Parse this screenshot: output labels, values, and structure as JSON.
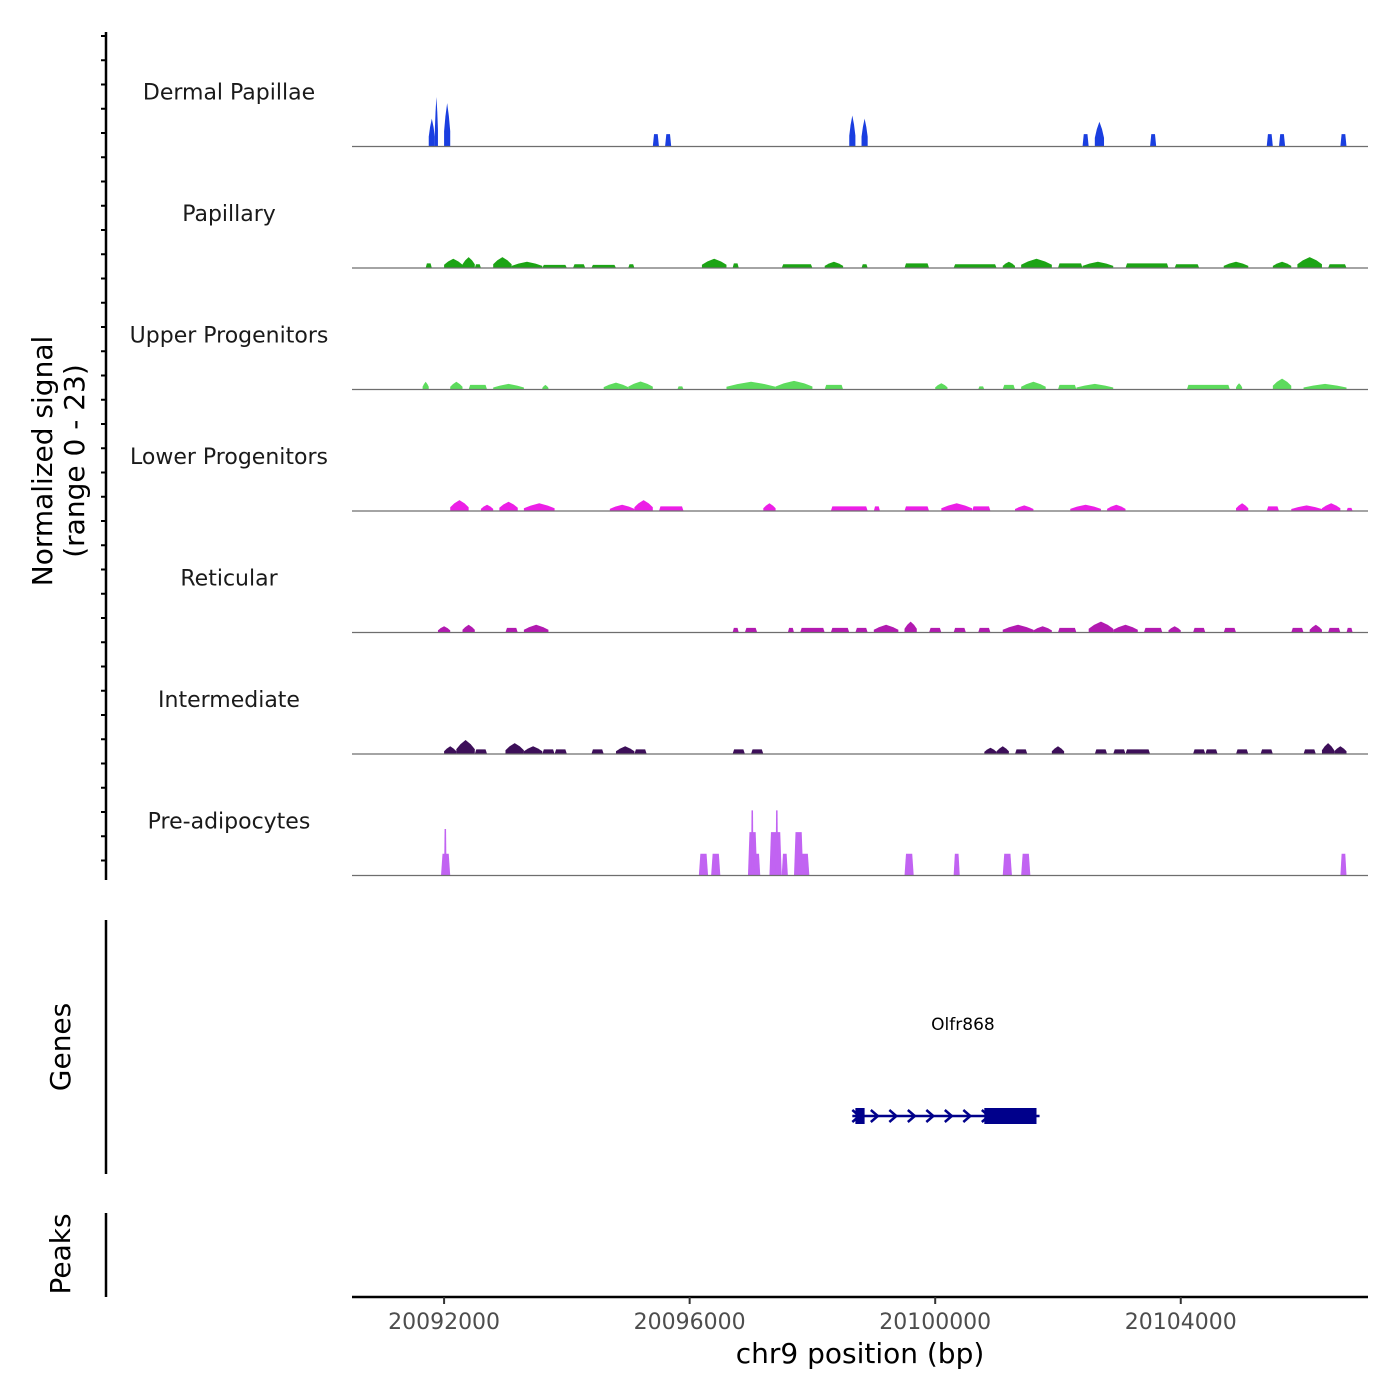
{
  "chart_data": {
    "type": "area",
    "title": "",
    "chromosome": "chr9",
    "xlabel": "chr9 position (bp)",
    "xlim": [
      20090500,
      20107050
    ],
    "x_ticks": [
      20092000,
      20096000,
      20100000,
      20104000
    ],
    "x_tick_labels": [
      "20092000",
      "20096000",
      "20100000",
      "20104000"
    ],
    "ylabel_line1": "Normalized signal",
    "ylabel_line2": "(range 0 - 23)",
    "ylim": [
      0,
      23
    ],
    "bin_size_bp": 100,
    "series": [
      {
        "name": "Dermal Papillae",
        "color": "#1a3ee0",
        "peaks": [
          [
            20091750,
            20091850,
            9,
            1
          ],
          [
            20091850,
            20091900,
            16,
            1
          ],
          [
            20092000,
            20092100,
            14,
            1
          ],
          [
            20095400,
            20095500,
            4,
            0
          ],
          [
            20095600,
            20095700,
            4,
            0
          ],
          [
            20098600,
            20098700,
            10,
            1
          ],
          [
            20098800,
            20098900,
            9,
            1
          ],
          [
            20102400,
            20102500,
            4,
            0
          ],
          [
            20102600,
            20102750,
            8,
            1
          ],
          [
            20103500,
            20103600,
            4,
            0
          ],
          [
            20105400,
            20105500,
            4,
            0
          ],
          [
            20105600,
            20105700,
            4,
            0
          ],
          [
            20106600,
            20106700,
            4,
            0
          ]
        ]
      },
      {
        "name": "Papillary",
        "color": "#1ca415",
        "peaks": [
          [
            20091700,
            20091800,
            1.5,
            0
          ],
          [
            20092000,
            20092300,
            3,
            1
          ],
          [
            20092300,
            20092500,
            3.5,
            1
          ],
          [
            20092500,
            20092600,
            1.2,
            0
          ],
          [
            20092800,
            20093100,
            3.5,
            1
          ],
          [
            20093100,
            20093600,
            2,
            1
          ],
          [
            20093600,
            20094000,
            1,
            0
          ],
          [
            20094100,
            20094300,
            1.2,
            0
          ],
          [
            20094400,
            20094800,
            1,
            0
          ],
          [
            20095000,
            20095100,
            1.2,
            0
          ],
          [
            20096200,
            20096600,
            3,
            1
          ],
          [
            20096700,
            20096800,
            1.5,
            0
          ],
          [
            20097500,
            20098000,
            1.2,
            0
          ],
          [
            20098200,
            20098500,
            2,
            1
          ],
          [
            20098800,
            20098900,
            1.2,
            0
          ],
          [
            20099500,
            20099900,
            1.5,
            0
          ],
          [
            20100300,
            20101000,
            1.2,
            0
          ],
          [
            20101100,
            20101300,
            2,
            1
          ],
          [
            20101400,
            20101900,
            3,
            1
          ],
          [
            20102000,
            20102400,
            1.5,
            0
          ],
          [
            20102400,
            20102900,
            2,
            1
          ],
          [
            20103100,
            20103800,
            1.5,
            0
          ],
          [
            20103900,
            20104300,
            1.2,
            0
          ],
          [
            20104700,
            20105100,
            2,
            1
          ],
          [
            20105500,
            20105800,
            2,
            1
          ],
          [
            20105900,
            20106300,
            3.5,
            1
          ],
          [
            20106400,
            20106700,
            1.2,
            0
          ]
        ]
      },
      {
        "name": "Upper Progenitors",
        "color": "#5ddb5d",
        "peaks": [
          [
            20091650,
            20091750,
            2.5,
            1
          ],
          [
            20092100,
            20092300,
            2.5,
            1
          ],
          [
            20092400,
            20092700,
            1.5,
            0
          ],
          [
            20092800,
            20093300,
            1.8,
            1
          ],
          [
            20093600,
            20093700,
            1.5,
            1
          ],
          [
            20094600,
            20095000,
            2.2,
            1
          ],
          [
            20095000,
            20095400,
            2.6,
            1
          ],
          [
            20095800,
            20095900,
            1,
            0
          ],
          [
            20096600,
            20097400,
            2.5,
            1
          ],
          [
            20097400,
            20098000,
            2.8,
            1
          ],
          [
            20098200,
            20098500,
            1.5,
            0
          ],
          [
            20100000,
            20100200,
            2,
            1
          ],
          [
            20100700,
            20100800,
            1,
            0
          ],
          [
            20101100,
            20101300,
            1.5,
            0
          ],
          [
            20101400,
            20101800,
            2.5,
            1
          ],
          [
            20102000,
            20102300,
            1.5,
            0
          ],
          [
            20102300,
            20102900,
            1.8,
            1
          ],
          [
            20104100,
            20104800,
            1.5,
            0
          ],
          [
            20104900,
            20105000,
            2,
            1
          ],
          [
            20105500,
            20105800,
            3.5,
            1
          ],
          [
            20106000,
            20106700,
            1.8,
            1
          ]
        ]
      },
      {
        "name": "Lower Progenitors",
        "color": "#ec1fe6",
        "peaks": [
          [
            20092100,
            20092400,
            3.5,
            1
          ],
          [
            20092600,
            20092800,
            2,
            1
          ],
          [
            20092900,
            20093200,
            3,
            1
          ],
          [
            20093300,
            20093800,
            2.5,
            1
          ],
          [
            20094700,
            20095100,
            2,
            1
          ],
          [
            20095100,
            20095400,
            3.5,
            1
          ],
          [
            20095500,
            20095900,
            1.5,
            0
          ],
          [
            20097200,
            20097400,
            2.5,
            1
          ],
          [
            20098300,
            20098900,
            1.5,
            0
          ],
          [
            20099000,
            20099100,
            1.5,
            0
          ],
          [
            20099500,
            20099900,
            1.5,
            0
          ],
          [
            20100100,
            20100600,
            2.5,
            1
          ],
          [
            20100600,
            20100900,
            1.5,
            0
          ],
          [
            20101300,
            20101600,
            1.8,
            1
          ],
          [
            20102200,
            20102700,
            2,
            1
          ],
          [
            20102800,
            20103100,
            2,
            1
          ],
          [
            20104900,
            20105100,
            2.5,
            1
          ],
          [
            20105400,
            20105600,
            1.5,
            0
          ],
          [
            20105800,
            20106300,
            1.8,
            1
          ],
          [
            20106300,
            20106600,
            2.5,
            1
          ],
          [
            20106700,
            20106800,
            1,
            0
          ]
        ]
      },
      {
        "name": "Reticular",
        "color": "#b21ab0",
        "peaks": [
          [
            20091900,
            20092100,
            2,
            1
          ],
          [
            20092300,
            20092500,
            2.5,
            1
          ],
          [
            20093000,
            20093200,
            1.5,
            0
          ],
          [
            20093300,
            20093700,
            2.5,
            1
          ],
          [
            20096700,
            20096800,
            1.5,
            0
          ],
          [
            20096900,
            20097100,
            1.5,
            0
          ],
          [
            20097600,
            20097700,
            1.5,
            0
          ],
          [
            20097800,
            20098200,
            1.5,
            0
          ],
          [
            20098300,
            20098600,
            1.5,
            0
          ],
          [
            20098700,
            20098900,
            1.5,
            0
          ],
          [
            20099000,
            20099400,
            2.5,
            1
          ],
          [
            20099500,
            20099700,
            3.5,
            1
          ],
          [
            20099900,
            20100100,
            1.5,
            0
          ],
          [
            20100300,
            20100500,
            1.5,
            0
          ],
          [
            20100700,
            20100900,
            1.5,
            0
          ],
          [
            20101100,
            20101600,
            2.5,
            1
          ],
          [
            20101600,
            20101900,
            2,
            1
          ],
          [
            20102000,
            20102300,
            1.5,
            0
          ],
          [
            20102500,
            20102900,
            3.5,
            1
          ],
          [
            20102900,
            20103300,
            2.5,
            1
          ],
          [
            20103400,
            20103700,
            1.5,
            0
          ],
          [
            20103800,
            20104000,
            2,
            1
          ],
          [
            20104200,
            20104400,
            1.5,
            0
          ],
          [
            20104700,
            20104900,
            1.5,
            0
          ],
          [
            20105800,
            20106000,
            1.5,
            0
          ],
          [
            20106100,
            20106300,
            2.5,
            1
          ],
          [
            20106400,
            20106600,
            1.5,
            0
          ],
          [
            20106700,
            20106800,
            1.5,
            0
          ]
        ]
      },
      {
        "name": "Intermediate",
        "color": "#3d0f59",
        "peaks": [
          [
            20092000,
            20092200,
            2.5,
            1
          ],
          [
            20092200,
            20092500,
            4.5,
            1
          ],
          [
            20092500,
            20092700,
            1.5,
            0
          ],
          [
            20093000,
            20093300,
            3.5,
            1
          ],
          [
            20093300,
            20093600,
            2.5,
            1
          ],
          [
            20093600,
            20093800,
            1.5,
            0
          ],
          [
            20093800,
            20094000,
            1.5,
            0
          ],
          [
            20094400,
            20094600,
            1.5,
            0
          ],
          [
            20094800,
            20095100,
            2.5,
            1
          ],
          [
            20095100,
            20095300,
            1.5,
            0
          ],
          [
            20096700,
            20096900,
            1.5,
            0
          ],
          [
            20097000,
            20097200,
            1.5,
            0
          ],
          [
            20100800,
            20101000,
            2,
            1
          ],
          [
            20101000,
            20101200,
            2.5,
            1
          ],
          [
            20101300,
            20101500,
            1.5,
            0
          ],
          [
            20101900,
            20102100,
            2.5,
            1
          ],
          [
            20102600,
            20102800,
            1.5,
            0
          ],
          [
            20102900,
            20103100,
            1.5,
            0
          ],
          [
            20103100,
            20103500,
            1.5,
            0
          ],
          [
            20104200,
            20104400,
            1.5,
            0
          ],
          [
            20104400,
            20104600,
            1.5,
            0
          ],
          [
            20104900,
            20105100,
            1.5,
            0
          ],
          [
            20105300,
            20105500,
            1.5,
            0
          ],
          [
            20106000,
            20106200,
            1.5,
            0
          ],
          [
            20106300,
            20106500,
            3.5,
            1
          ],
          [
            20106500,
            20106700,
            2.5,
            1
          ]
        ]
      },
      {
        "name": "Pre-adipocytes",
        "color": "#c163f2",
        "peaks": [
          [
            20091950,
            20092100,
            7,
            0
          ],
          [
            20092000,
            20092040,
            15,
            0
          ],
          [
            20096150,
            20096300,
            7,
            0
          ],
          [
            20096350,
            20096500,
            7,
            0
          ],
          [
            20096950,
            20097100,
            14,
            0
          ],
          [
            20097000,
            20097040,
            21,
            0
          ],
          [
            20097050,
            20097150,
            7,
            0
          ],
          [
            20097300,
            20097500,
            14,
            0
          ],
          [
            20097400,
            20097440,
            21,
            0
          ],
          [
            20097500,
            20097600,
            7,
            0
          ],
          [
            20097700,
            20097850,
            14,
            0
          ],
          [
            20097800,
            20097950,
            7,
            0
          ],
          [
            20099500,
            20099650,
            7,
            0
          ],
          [
            20100300,
            20100400,
            7,
            0
          ],
          [
            20101100,
            20101250,
            7,
            0
          ],
          [
            20101400,
            20101550,
            7,
            0
          ],
          [
            20106600,
            20106700,
            7,
            0
          ]
        ]
      }
    ],
    "genes_panel_label": "Genes",
    "genes": [
      {
        "name": "Olfr868",
        "strand": "+",
        "start": 20098650,
        "end": 20101700,
        "exons": [
          [
            20098700,
            20098850
          ],
          [
            20100800,
            20101650
          ]
        ],
        "color": "#00008b"
      }
    ],
    "peaks_panel_label": "Peaks",
    "peak_regions": []
  }
}
